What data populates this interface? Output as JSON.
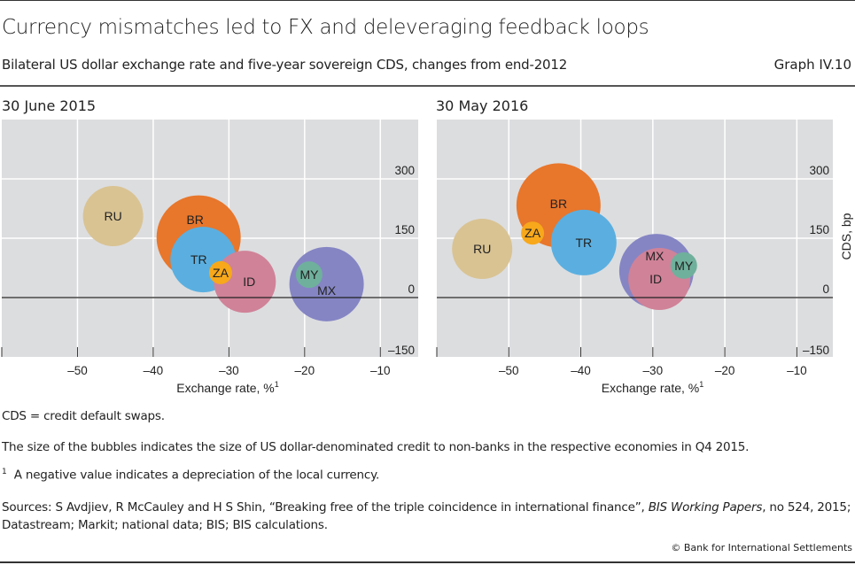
{
  "header": {
    "title": "Currency mismatches led to FX and deleveraging feedback loops",
    "subtitle": "Bilateral US dollar exchange rate and five-year sovereign CDS, changes from end-2012",
    "graph_id": "Graph IV.10"
  },
  "chart_data": [
    {
      "type": "scatter",
      "variant": "bubble",
      "title": "30 June 2015",
      "xlabel": "Exchange rate, %",
      "xlabel_footnote": "1",
      "ylabel": "",
      "xlim": [
        -60,
        -5
      ],
      "ylim": [
        -150,
        450
      ],
      "xticks": [
        -50,
        -40,
        -30,
        -20,
        -10
      ],
      "xtick_labels": [
        "–50",
        "–40",
        "–30",
        "–20",
        "–10"
      ],
      "yticks": [
        -150,
        0,
        150,
        300
      ],
      "ytick_labels": [
        "–150",
        "0",
        "150",
        "300"
      ],
      "grid": true,
      "zero_line": true,
      "points": [
        {
          "label": "RU",
          "x": -45.3,
          "y": 206,
          "size": 1156,
          "color": "#d9c393"
        },
        {
          "label": "BR",
          "x": -34.0,
          "y": 152,
          "size": 2256,
          "color": "#e8762b"
        },
        {
          "label": "MX",
          "x": -17.1,
          "y": 34,
          "size": 1764,
          "color": "#8585c4"
        },
        {
          "label": "TR",
          "x": -33.4,
          "y": 96,
          "size": 1369,
          "color": "#5aafe0"
        },
        {
          "label": "ID",
          "x": -27.9,
          "y": 40,
          "size": 1225,
          "color": "#d08298"
        },
        {
          "label": "ZA",
          "x": -31.1,
          "y": 63,
          "size": 169,
          "color": "#f7a81b"
        },
        {
          "label": "MY",
          "x": -19.4,
          "y": 58,
          "size": 225,
          "color": "#6fb09c"
        }
      ]
    },
    {
      "type": "scatter",
      "variant": "bubble",
      "title": "30 May 2016",
      "xlabel": "Exchange rate, %",
      "xlabel_footnote": "1",
      "ylabel": "CDS, bp",
      "xlim": [
        -60,
        -5
      ],
      "ylim": [
        -150,
        450
      ],
      "xticks": [
        -50,
        -40,
        -30,
        -20,
        -10
      ],
      "xtick_labels": [
        "–50",
        "–40",
        "–30",
        "–20",
        "–10"
      ],
      "yticks": [
        -150,
        0,
        150,
        300
      ],
      "ytick_labels": [
        "–150",
        "0",
        "150",
        "300"
      ],
      "grid": true,
      "zero_line": true,
      "points": [
        {
          "label": "RU",
          "x": -53.7,
          "y": 123,
          "size": 1156,
          "color": "#d9c393"
        },
        {
          "label": "BR",
          "x": -43.1,
          "y": 233,
          "size": 2256,
          "color": "#e8762b"
        },
        {
          "label": "ZA",
          "x": -46.7,
          "y": 163,
          "size": 169,
          "color": "#f7a81b"
        },
        {
          "label": "TR",
          "x": -39.6,
          "y": 139,
          "size": 1369,
          "color": "#5aafe0"
        },
        {
          "label": "MX",
          "x": -29.5,
          "y": 67,
          "size": 1764,
          "color": "#8585c4"
        },
        {
          "label": "ID",
          "x": -29.1,
          "y": 47,
          "size": 1225,
          "color": "#d08298"
        },
        {
          "label": "MY",
          "x": -25.7,
          "y": 81,
          "size": 225,
          "color": "#6fb09c"
        }
      ]
    }
  ],
  "notes": {
    "abbrev": "CDS = credit default swaps.",
    "bubbles": "The size of the bubbles indicates the size of US dollar-denominated credit to non-banks in the respective economies in Q4 2015.",
    "footnote_marker": "1",
    "footnote": "A negative value indicates a depreciation of the local currency.",
    "sources_pre": "Sources: S Avdjiev, R McCauley and H S Shin, “Breaking free of the triple coincidence in international finance”, ",
    "sources_italic": "BIS Working Papers",
    "sources_post": ", no 524, 2015; Datastream; Markit; national data; BIS; BIS calculations.",
    "copyright": "© Bank for International Settlements"
  }
}
